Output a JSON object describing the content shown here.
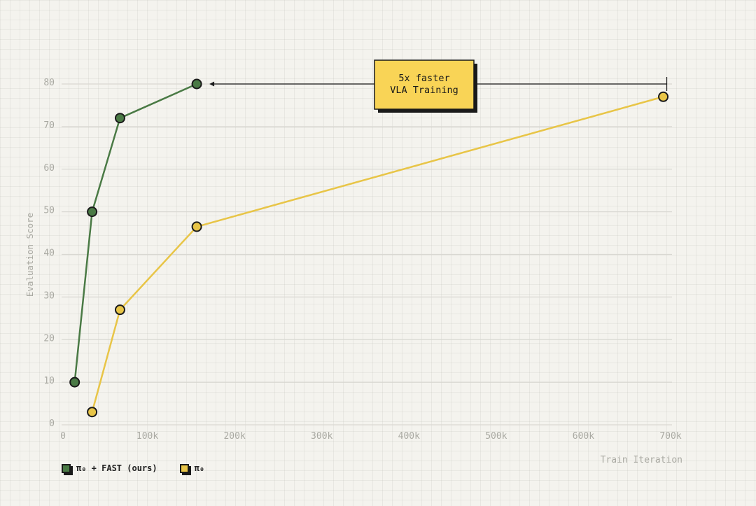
{
  "chart_data": {
    "type": "line",
    "xlabel": "Train Iteration",
    "ylabel": "Evaluation Score",
    "xlim": [
      0,
      700000
    ],
    "ylim": [
      0,
      80
    ],
    "x_ticks": [
      0,
      100000,
      200000,
      300000,
      400000,
      500000,
      600000,
      700000
    ],
    "x_tick_labels": [
      "0",
      "100k",
      "200k",
      "300k",
      "400k",
      "500k",
      "600k",
      "700k"
    ],
    "y_ticks": [
      0,
      10,
      20,
      30,
      40,
      50,
      60,
      70,
      80
    ],
    "y_tick_labels": [
      "0",
      "10",
      "20",
      "30",
      "40",
      "50",
      "60",
      "70",
      "80"
    ],
    "grid": "horizontal",
    "legend_position": "bottom-left",
    "series": [
      {
        "name": "π₀ + FAST (ours)",
        "color": "#4a7a45",
        "x": [
          15000,
          35000,
          67000,
          155000
        ],
        "y": [
          10,
          50,
          72,
          80
        ]
      },
      {
        "name": "π₀",
        "color": "#e8c547",
        "x": [
          35000,
          67000,
          155000,
          690000
        ],
        "y": [
          3,
          27,
          46.5,
          77
        ]
      }
    ],
    "annotation": {
      "lines": [
        "5x faster",
        "VLA Training"
      ],
      "from_x": 690000,
      "to_x": 155000,
      "y": 80,
      "box_color": "#f9d456"
    }
  }
}
